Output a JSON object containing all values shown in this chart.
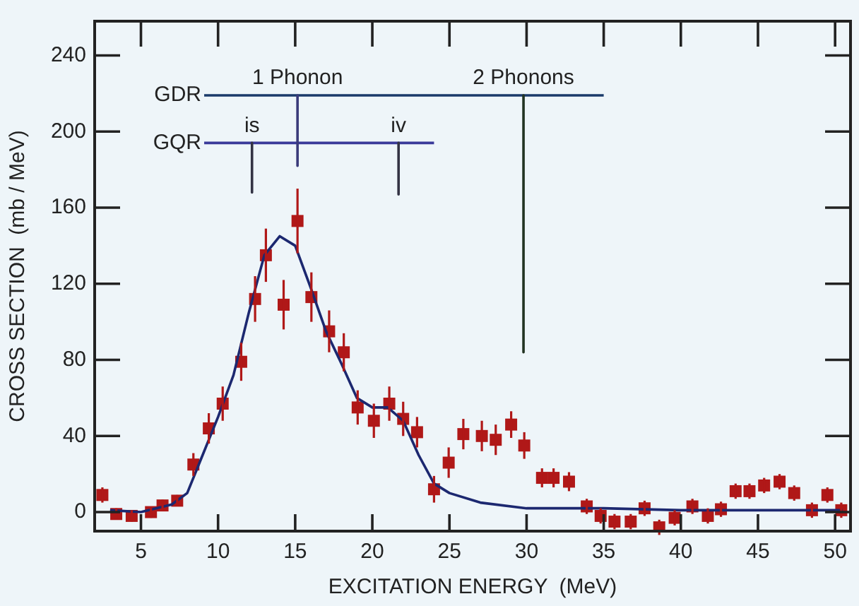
{
  "chart_data": {
    "type": "scatter",
    "xlabel": "EXCITATION ENERGY  (MeV)",
    "ylabel": "CROSS SECTION  (mb / MeV)",
    "xlim": [
      2,
      51
    ],
    "ylim": [
      -10,
      258
    ],
    "xticks": [
      5,
      10,
      15,
      20,
      25,
      30,
      35,
      40,
      45,
      50
    ],
    "yticks": [
      0,
      40,
      80,
      120,
      160,
      200,
      240
    ],
    "grid": false,
    "legend": false,
    "series": [
      {
        "type": "scatter",
        "marker": "square",
        "color": "#b01818",
        "x": [
          2.5,
          3.4,
          4.4,
          5.65,
          6.4,
          7.35,
          8.4,
          9.4,
          10.3,
          11.5,
          12.4,
          13.1,
          14.25,
          15.15,
          16.05,
          17.2,
          18.15,
          19.05,
          20.1,
          21.1,
          22.0,
          22.9,
          24.0,
          24.95,
          25.9,
          27.1,
          28.0,
          29.0,
          29.85,
          31.0,
          31.75,
          32.75,
          33.9,
          34.8,
          35.7,
          36.75,
          37.65,
          38.6,
          39.6,
          40.75,
          41.75,
          42.6,
          43.55,
          44.45,
          45.4,
          46.4,
          47.35,
          48.5,
          49.5,
          50.4
        ],
        "values": [
          9,
          -1,
          -2,
          0,
          3.5,
          6,
          25,
          44,
          57,
          79,
          112,
          135,
          109,
          153,
          113,
          95,
          84,
          55,
          48,
          57,
          49,
          42,
          12,
          26,
          41,
          40,
          38,
          46,
          35,
          18,
          18,
          16,
          3,
          -2,
          -5,
          -5,
          2,
          -8,
          -3,
          3,
          -2,
          1.5,
          11,
          11,
          14,
          16,
          10,
          1,
          9,
          1
        ],
        "errors": [
          4,
          3,
          3,
          3,
          3,
          3,
          6,
          8,
          9,
          10,
          12,
          14,
          13,
          17,
          13,
          11,
          10,
          9,
          9,
          9,
          9,
          8,
          7,
          8,
          8,
          8,
          8,
          7,
          7,
          5,
          5,
          5,
          4,
          4,
          4,
          4,
          4,
          4,
          4,
          4,
          4,
          4,
          4,
          4,
          4,
          4,
          4,
          4,
          4,
          4
        ]
      },
      {
        "type": "line",
        "marker": "none",
        "color": "#1c2870",
        "x": [
          3,
          5,
          7,
          8,
          9,
          10,
          11,
          12,
          13,
          14,
          15,
          16,
          17,
          18,
          19,
          20,
          21,
          22,
          23,
          24,
          25,
          27,
          30,
          35,
          40,
          45,
          50.5
        ],
        "values": [
          1,
          0,
          4,
          10,
          30,
          50,
          72,
          105,
          135,
          145,
          140,
          118,
          95,
          78,
          60,
          55,
          55,
          48,
          30,
          15,
          10,
          5,
          2,
          2,
          1,
          1,
          1
        ]
      },
      {
        "type": "line",
        "name": "GDR",
        "marker": "none",
        "color": "#1a3a6a",
        "x": [
          9.1,
          35.0
        ],
        "values": [
          219,
          219
        ]
      },
      {
        "type": "line",
        "name": "GQR",
        "marker": "none",
        "color": "#3a3a9a",
        "x": [
          9.1,
          24.0
        ],
        "values": [
          194,
          194
        ]
      },
      {
        "type": "line",
        "name": "1 Phonon",
        "marker": "none",
        "color": "#3a3a7a",
        "x": [
          15.15,
          15.15
        ],
        "values": [
          219,
          182
        ]
      },
      {
        "type": "line",
        "name": "is",
        "marker": "none",
        "color": "#333344",
        "x": [
          12.2,
          12.2
        ],
        "values": [
          194,
          168
        ]
      },
      {
        "type": "line",
        "name": "iv",
        "marker": "none",
        "color": "#333344",
        "x": [
          21.7,
          21.7
        ],
        "values": [
          194,
          167
        ]
      },
      {
        "type": "line",
        "name": "2 Phonons",
        "marker": "none",
        "color": "#223322",
        "x": [
          29.8,
          29.8
        ],
        "values": [
          219,
          84
        ]
      }
    ]
  }
}
